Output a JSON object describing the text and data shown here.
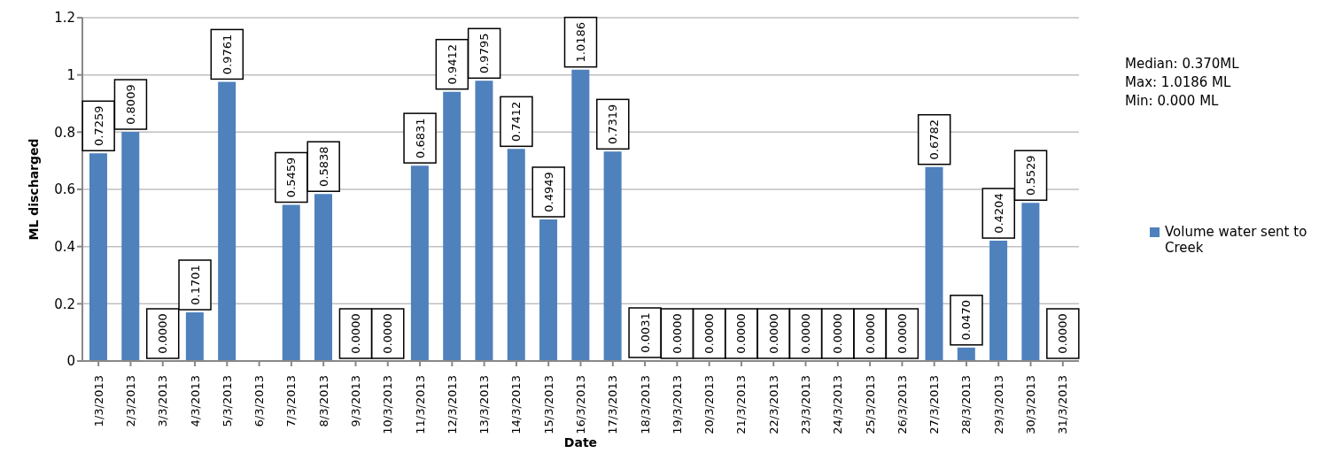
{
  "chart_data": {
    "type": "bar",
    "xlabel": "Date",
    "ylabel": "ML discharged",
    "categories": [
      "1/3/2013",
      "2/3/2013",
      "3/3/2013",
      "4/3/2013",
      "5/3/2013",
      "6/3/2013",
      "7/3/2013",
      "8/3/2013",
      "9/3/2013",
      "10/3/2013",
      "11/3/2013",
      "12/3/2013",
      "13/3/2013",
      "14/3/2013",
      "15/3/2013",
      "16/3/2013",
      "17/3/2013",
      "18/3/2013",
      "19/3/2013",
      "20/3/2013",
      "21/3/2013",
      "22/3/2013",
      "23/3/2013",
      "24/3/2013",
      "25/3/2013",
      "26/3/2013",
      "27/3/2013",
      "28/3/2013",
      "29/3/2013",
      "30/3/2013",
      "31/3/2013"
    ],
    "series": [
      {
        "name": "Volume water sent to Creek",
        "color": "#4f81bd",
        "values": [
          0.7259,
          0.8009,
          0,
          0.1701,
          0.9761,
          null,
          0.5459,
          0.5838,
          0,
          0,
          0.6831,
          0.9412,
          0.9795,
          0.7412,
          0.4949,
          1.0186,
          0.7319,
          0.0031,
          0,
          0,
          0,
          0,
          0,
          0,
          0,
          0,
          0.6782,
          0.047,
          0.4204,
          0.5529,
          0
        ],
        "value_labels": [
          "0.7259",
          "0.8009",
          "0.0000",
          "0.1701",
          "0.9761",
          null,
          "0.5459",
          "0.5838",
          "0.0000",
          "0.0000",
          "0.6831",
          "0.9412",
          "0.9795",
          "0.7412",
          "0.4949",
          "1.0186",
          "0.7319",
          "0.0031",
          "0.0000",
          "0.0000",
          "0.0000",
          "0.0000",
          "0.0000",
          "0.0000",
          "0.0000",
          "0.0000",
          "0.6782",
          "0.0470",
          "0.4204",
          "0.5529",
          "0.0000"
        ]
      }
    ],
    "ylim": [
      0,
      1.2
    ],
    "yticks": [
      0,
      0.2,
      0.4,
      0.6,
      0.8,
      1,
      1.2
    ],
    "grid": "y",
    "legend": "right",
    "annotations": [
      "Median: 0.370ML",
      "Max: 1.0186 ML",
      "Min: 0.000 ML"
    ]
  }
}
